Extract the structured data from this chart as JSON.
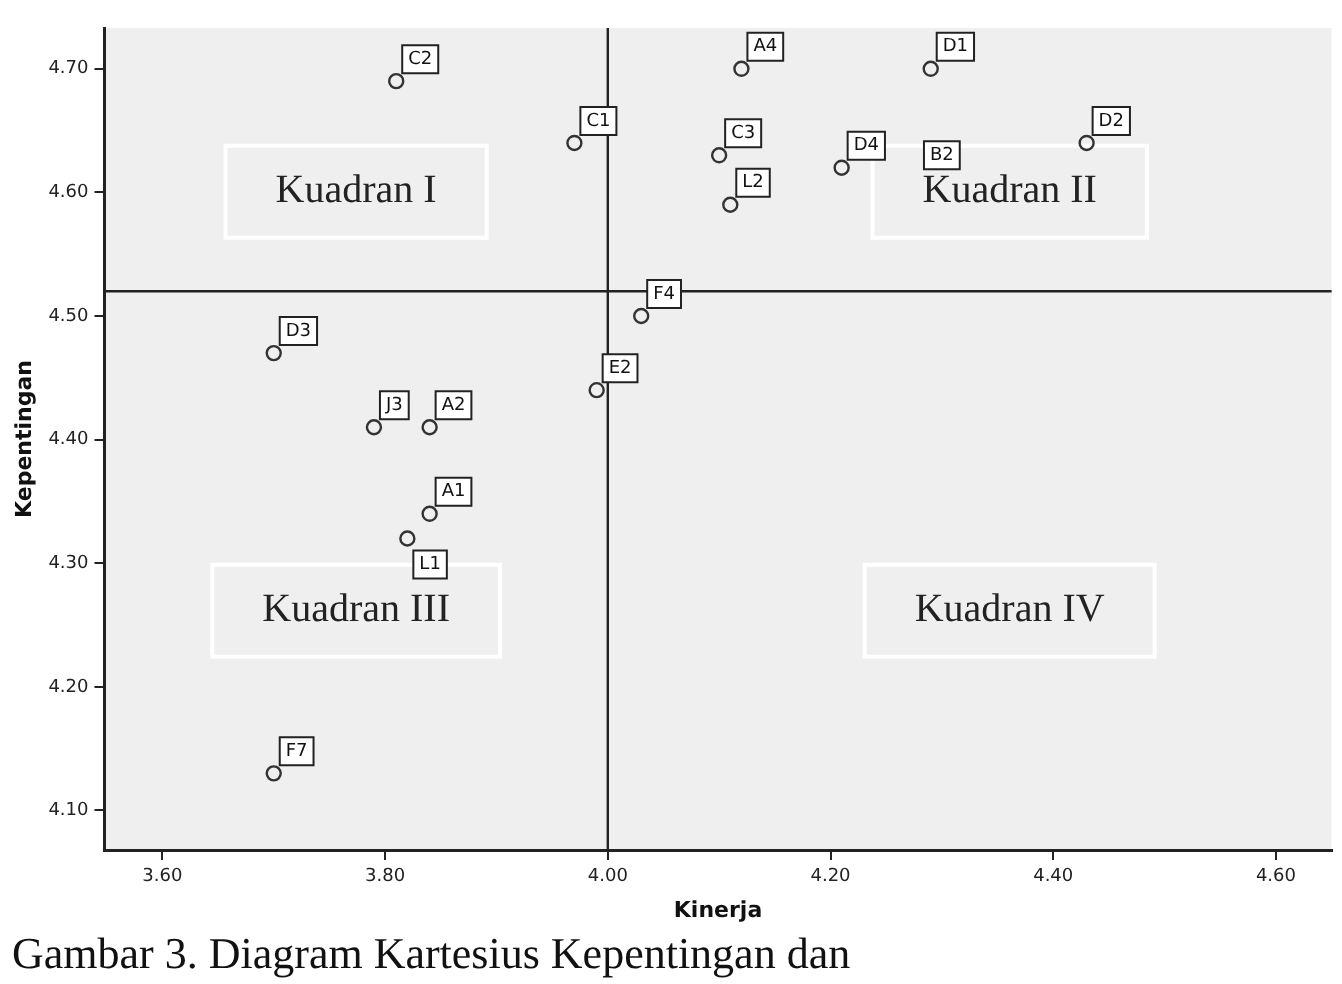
{
  "chart_data": {
    "type": "scatter",
    "xlabel": "Kinerja",
    "ylabel": "Kepentingan",
    "marker": "circle",
    "grid": false,
    "legend": false,
    "series": [
      {
        "color": "#333333",
        "x": [
          3.81,
          3.97,
          3.7,
          3.79,
          3.84,
          3.99,
          4.03,
          4.12,
          4.29,
          4.1,
          4.11,
          4.21,
          4.43,
          3.84,
          3.82,
          3.7
        ],
        "values": [
          4.69,
          4.64,
          4.47,
          4.41,
          4.41,
          4.44,
          4.5,
          4.7,
          4.7,
          4.63,
          4.59,
          4.62,
          4.64,
          4.34,
          4.32,
          4.13
        ]
      }
    ],
    "xlim": [
      3.548,
      4.65
    ],
    "ylim": [
      4.068,
      4.733
    ],
    "xticks": [
      {
        "value": 3.6,
        "label": "3.60"
      },
      {
        "value": 3.8,
        "label": "3.80"
      },
      {
        "value": 4.0,
        "label": "4.00"
      },
      {
        "value": 4.2,
        "label": "4.20"
      },
      {
        "value": 4.4,
        "label": "4.40"
      },
      {
        "value": 4.6,
        "label": "4.60"
      }
    ],
    "yticks": [
      {
        "value": 4.1,
        "label": "4.10"
      },
      {
        "value": 4.2,
        "label": "4.20"
      },
      {
        "value": 4.3,
        "label": "4.30"
      },
      {
        "value": 4.4,
        "label": "4.40"
      },
      {
        "value": 4.5,
        "label": "4.50"
      },
      {
        "value": 4.6,
        "label": "4.60"
      },
      {
        "value": 4.7,
        "label": "4.70"
      }
    ],
    "ref_lines": [
      {
        "axis": "x",
        "value": 4.0,
        "color": "#222222"
      },
      {
        "axis": "y",
        "value": 4.52,
        "color": "#222222"
      }
    ],
    "annotations": [
      {
        "text": "C2",
        "x": 3.81,
        "y": 4.69
      },
      {
        "text": "C1",
        "x": 3.97,
        "y": 4.64
      },
      {
        "text": "D3",
        "x": 3.7,
        "y": 4.47
      },
      {
        "text": "J3",
        "x": 3.79,
        "y": 4.41
      },
      {
        "text": "A2",
        "x": 3.84,
        "y": 4.41
      },
      {
        "text": "E2",
        "x": 3.99,
        "y": 4.44
      },
      {
        "text": "F4",
        "x": 4.03,
        "y": 4.5
      },
      {
        "text": "A4",
        "x": 4.12,
        "y": 4.7
      },
      {
        "text": "D1",
        "x": 4.29,
        "y": 4.7
      },
      {
        "text": "C3",
        "x": 4.1,
        "y": 4.63
      },
      {
        "text": "L2",
        "x": 4.11,
        "y": 4.59
      },
      {
        "text": "D4",
        "x": 4.21,
        "y": 4.62
      },
      {
        "text": "B2",
        "x": 4.3,
        "y": 4.63
      },
      {
        "text": "D2",
        "x": 4.43,
        "y": 4.64
      },
      {
        "text": "A1",
        "x": 3.84,
        "y": 4.34
      },
      {
        "text": "L1",
        "x": 3.82,
        "y": 4.32
      },
      {
        "text": "F7",
        "x": 3.7,
        "y": 4.13
      },
      "Kuadran I",
      "Kuadran II",
      "Kuadran III",
      "Kuadran IV",
      "Gambar 3. Diagram Kartesius Kepentingan dan"
    ]
  }
}
